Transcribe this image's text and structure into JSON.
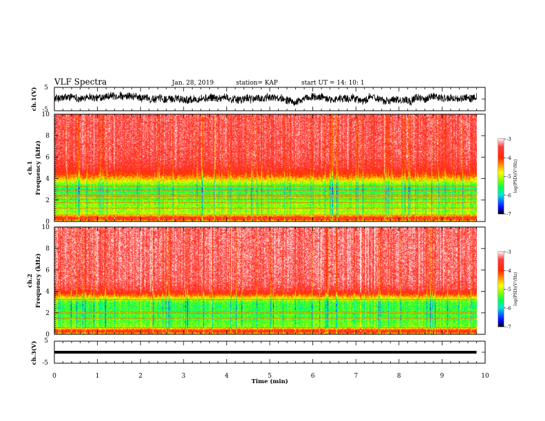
{
  "header": {
    "title": "VLF Spectra",
    "date": "Jan. 28, 2019",
    "station": "station= KAP",
    "start": "start UT = 14: 10: 1"
  },
  "colors": {
    "waveform": "#000000",
    "background": "#ffffff",
    "colormap": [
      "#000000",
      "#0000ff",
      "#00aaff",
      "#00ffcc",
      "#00ff00",
      "#aaff00",
      "#ffff00",
      "#ff9900",
      "#ff2200",
      "#ff6666",
      "#ffeaea"
    ]
  },
  "chart_data": [
    {
      "id": "ch1_waveform",
      "type": "line",
      "ylabel": "ch.1(V)",
      "ylim": [
        -5,
        5
      ],
      "yticks": [
        "5",
        "-5"
      ],
      "xlim": [
        0,
        10
      ],
      "description_values": {
        "mean_volts": 0.3,
        "amplitude_volts": 2.0,
        "data_end_min": 9.8
      }
    },
    {
      "id": "ch1_spectrogram",
      "type": "heatmap",
      "ylabel": "ch.1 Frequency (kHz)",
      "ylim": [
        0,
        10
      ],
      "yticks": [
        "0",
        "2",
        "4",
        "6",
        "8",
        "10"
      ],
      "xlim": [
        0,
        10
      ],
      "colorbar": {
        "label": "log(PSD)(V²/Hz)",
        "range": [
          -7,
          -3
        ],
        "ticks": [
          "-3",
          "-4",
          "-5",
          "-6",
          "-7"
        ]
      },
      "profile_khz": [
        [
          0.0,
          -4.6
        ],
        [
          0.3,
          -3.5
        ],
        [
          0.6,
          -5.0
        ],
        [
          1.0,
          -5.1
        ],
        [
          1.5,
          -5.2
        ],
        [
          2.0,
          -5.3
        ],
        [
          2.5,
          -5.4
        ],
        [
          3.0,
          -5.6
        ],
        [
          3.5,
          -5.2
        ],
        [
          4.0,
          -4.5
        ],
        [
          4.5,
          -3.9
        ],
        [
          5.0,
          -3.6
        ],
        [
          6.0,
          -3.45
        ],
        [
          8.0,
          -3.4
        ],
        [
          10.0,
          -3.4
        ]
      ],
      "lines_khz": [
        0.3,
        0.6,
        1.2,
        1.75,
        2.05,
        2.3,
        2.45,
        2.9,
        3.3,
        4.7,
        4.85,
        5.05,
        5.15,
        5.35
      ]
    },
    {
      "id": "ch2_spectrogram",
      "type": "heatmap",
      "ylabel": "ch.2 Frequency (kHz)",
      "ylim": [
        0,
        10
      ],
      "yticks": [
        "0",
        "2",
        "4",
        "6",
        "8",
        "10"
      ],
      "xlim": [
        0,
        10
      ],
      "colorbar": {
        "label": "log(PSD)(V²/Hz)",
        "range": [
          -7,
          -3
        ],
        "ticks": [
          "-3",
          "-4",
          "-5",
          "-6",
          "-7"
        ]
      },
      "profile_khz": [
        [
          0.0,
          -4.6
        ],
        [
          0.3,
          -3.6
        ],
        [
          0.6,
          -5.2
        ],
        [
          1.0,
          -5.3
        ],
        [
          1.5,
          -5.4
        ],
        [
          2.0,
          -5.4
        ],
        [
          2.5,
          -5.5
        ],
        [
          3.0,
          -5.4
        ],
        [
          3.4,
          -4.7
        ],
        [
          3.8,
          -3.9
        ],
        [
          4.2,
          -3.5
        ],
        [
          5.0,
          -3.35
        ],
        [
          8.0,
          -3.3
        ],
        [
          10.0,
          -3.3
        ]
      ],
      "lines_khz": [
        0.3,
        0.55,
        1.5,
        1.95,
        2.05,
        3.25,
        4.35,
        4.6,
        4.8
      ]
    },
    {
      "id": "ch3_waveform",
      "type": "line",
      "ylabel": "ch.3(V)",
      "ylim": [
        -5,
        5
      ],
      "yticks": [
        "5",
        "-5"
      ],
      "xlim": [
        0,
        10
      ],
      "description_values": {
        "constant_volts": 0.0,
        "data_end_min": 9.8
      }
    }
  ],
  "xaxis": {
    "label": "Time (min)",
    "ticks": [
      "0",
      "1",
      "2",
      "3",
      "4",
      "5",
      "6",
      "7",
      "8",
      "9",
      "10"
    ],
    "minor_per_major": 5
  }
}
